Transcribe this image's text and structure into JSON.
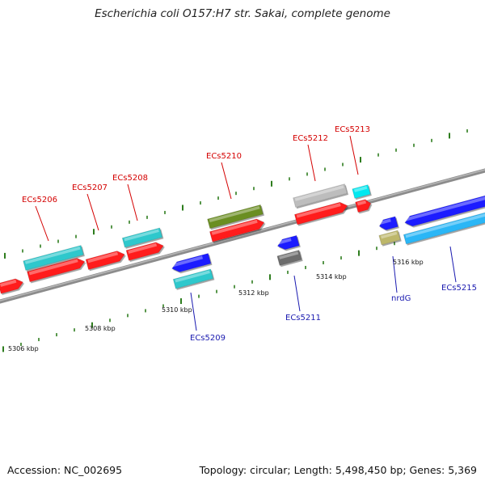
{
  "title": "Escherichia coli O157:H7 str. Sakai, complete genome",
  "footer": {
    "accession": "Accession: NC_002695",
    "topology": "Topology: circular; Length: 5,498,450 bp; Genes: 5,369"
  },
  "colors": {
    "backbone": "#8c8c8c",
    "tick_major": "#2e7d1e",
    "label_forward": "#d40000",
    "label_reverse": "#1a1ab0"
  },
  "scale": {
    "ticks": [
      {
        "label": "5306 kbp"
      },
      {
        "label": "5308 kbp"
      },
      {
        "label": "5310 kbp"
      },
      {
        "label": "5312 kbp"
      },
      {
        "label": "5314 kbp"
      },
      {
        "label": "5316 kbp"
      }
    ]
  },
  "genes": [
    {
      "label": "ECs5206",
      "strand": "forward",
      "color": "#ff1a1a"
    },
    {
      "label": "ECs5207",
      "strand": "forward",
      "color": "#ff1a1a"
    },
    {
      "label": "ECs5208",
      "strand": "forward",
      "color": "#ff1a1a"
    },
    {
      "label": "ECs5209",
      "strand": "reverse",
      "color": "#1a1aff"
    },
    {
      "label": "ECs5210",
      "strand": "forward",
      "color": "#ff1a1a"
    },
    {
      "label": "ECs5211",
      "strand": "reverse",
      "color": "#1a1aff"
    },
    {
      "label": "ECs5212",
      "strand": "forward",
      "color": "#ff1a1a"
    },
    {
      "label": "ECs5213",
      "strand": "forward",
      "color": "#ff1a1a"
    },
    {
      "label": "nrdG",
      "strand": "reverse",
      "color": "#1a1aff"
    },
    {
      "label": "ECs5215",
      "strand": "reverse",
      "color": "#1a1aff"
    }
  ]
}
